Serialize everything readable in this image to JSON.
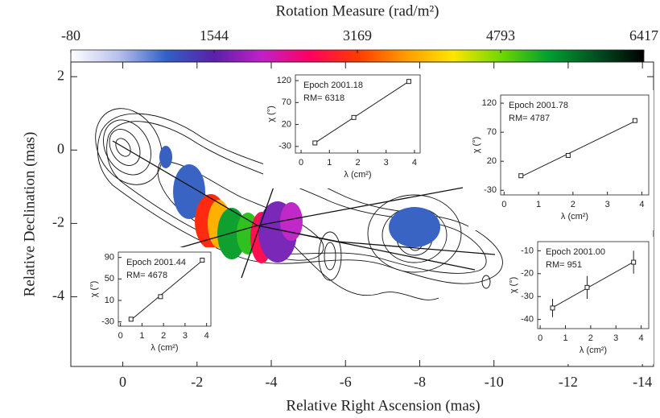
{
  "chart_data": [
    {
      "type": "map",
      "colorbar": {
        "label": "Rotation Measure (rad/m²)",
        "lim": [
          -80,
          6417
        ],
        "ticks": [
          -80,
          1544,
          3169,
          4793,
          6417
        ],
        "colors": [
          "#ffffff",
          "#b8c0ec",
          "#3060c8",
          "#5a20a8",
          "#c020c8",
          "#ff0060",
          "#ff3a00",
          "#ff9a00",
          "#ffe600",
          "#70d800",
          "#00a030",
          "#005020",
          "#000000"
        ]
      },
      "xlabel": "Relative Right Ascension (mas)",
      "ylabel": "Relative Declination (mas)",
      "xlim": [
        1.4,
        -14.3
      ],
      "ylim": [
        -5.9,
        2.4
      ],
      "xticks": [
        0,
        -2,
        -4,
        -6,
        -8,
        -10,
        -12,
        -14
      ],
      "yticks": [
        2,
        0,
        -2,
        -4
      ]
    },
    {
      "type": "scatter",
      "title": "Epoch 2001.18",
      "annotation": "RM= 6318",
      "xlabel": "λ (cm²)",
      "ylabel": "χ (°)",
      "x": [
        0.49,
        1.86,
        3.8
      ],
      "values": [
        -22,
        36,
        118
      ],
      "xlim": [
        -0.2,
        4.2
      ],
      "ylim": [
        -45,
        133
      ],
      "xticks": [
        0,
        1,
        2,
        3,
        4
      ],
      "yticks": [
        -30,
        20,
        70,
        120
      ]
    },
    {
      "type": "scatter",
      "title": "Epoch 2001.78",
      "annotation": "RM= 4787",
      "xlabel": "λ (cm²)",
      "ylabel": "χ (°)",
      "x": [
        0.49,
        1.86,
        3.8
      ],
      "values": [
        -5,
        30,
        90
      ],
      "xlim": [
        -0.1,
        4.2
      ],
      "ylim": [
        -38,
        134
      ],
      "xticks": [
        0,
        1,
        2,
        3,
        4
      ],
      "yticks": [
        -30,
        20,
        70,
        120
      ]
    },
    {
      "type": "scatter",
      "title": "Epoch 2001.44",
      "annotation": "RM= 4678",
      "xlabel": "λ (cm²)",
      "ylabel": "χ (°)",
      "x": [
        0.49,
        1.86,
        3.8
      ],
      "values": [
        -25,
        17,
        85
      ],
      "xlim": [
        -0.1,
        4.2
      ],
      "ylim": [
        -38,
        100
      ],
      "xticks": [
        0,
        1,
        2,
        3,
        4
      ],
      "yticks": [
        -30,
        10,
        50,
        90
      ]
    },
    {
      "type": "scatter",
      "title": "Epoch 2001.00",
      "annotation": "RM= 951",
      "xlabel": "λ (cm²)",
      "ylabel": "χ (°)",
      "x": [
        0.49,
        1.86,
        3.7
      ],
      "values": [
        -35,
        -26,
        -15
      ],
      "errors": [
        4,
        5,
        5
      ],
      "xlim": [
        -0.1,
        4.3
      ],
      "ylim": [
        -44,
        -6
      ],
      "xticks": [
        0,
        1,
        2,
        3,
        4
      ],
      "yticks": [
        -40,
        -30,
        -20,
        -10
      ]
    }
  ]
}
